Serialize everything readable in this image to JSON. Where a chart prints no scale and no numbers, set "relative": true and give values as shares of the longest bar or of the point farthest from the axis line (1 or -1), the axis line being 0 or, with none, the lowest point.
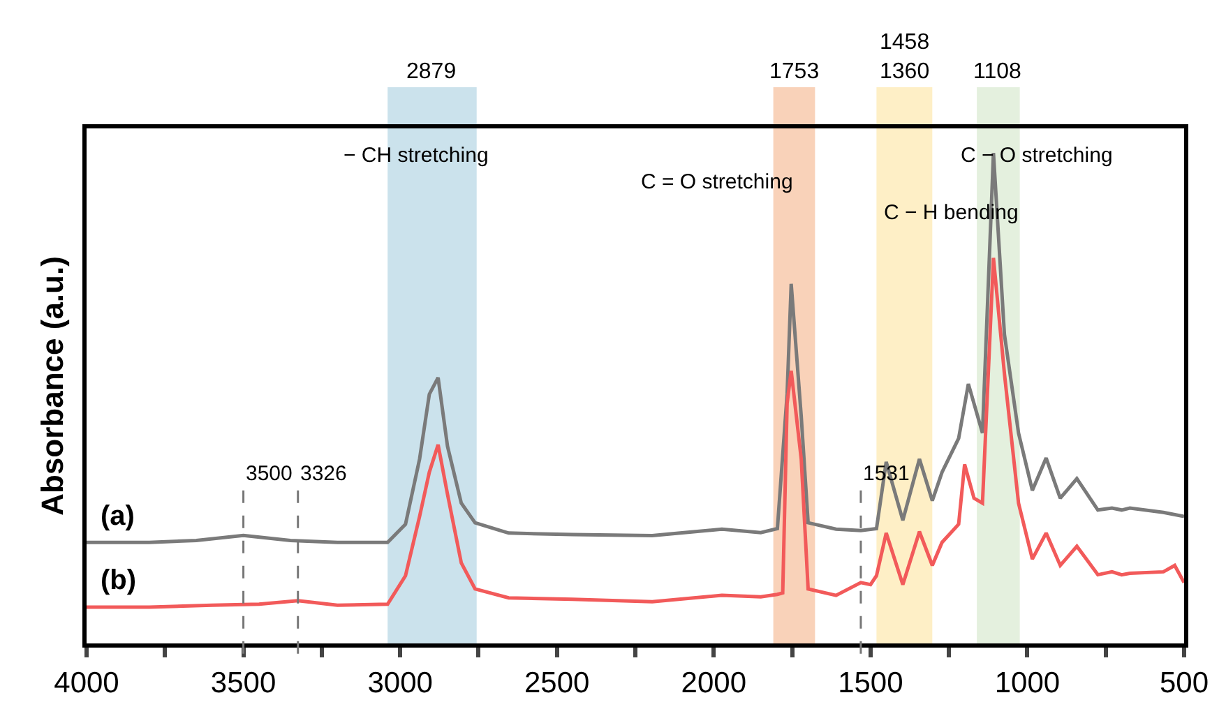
{
  "chart_data": {
    "type": "line",
    "ylabel": "Absorbance (a.u.)",
    "relative": true,
    "xlim": [
      4000,
      500
    ],
    "xticks": [
      4000,
      {
        "value": 3750,
        "label": null
      },
      3500,
      {
        "value": 3250,
        "label": null
      },
      3000,
      {
        "value": 2750,
        "label": null
      },
      2500,
      {
        "value": 2250,
        "label": null
      },
      2000,
      {
        "value": 1750,
        "label": null
      },
      1500,
      {
        "value": 1250,
        "label": null
      },
      1000,
      {
        "value": 750,
        "label": null
      },
      500
    ],
    "tick_labels": "x",
    "grid": false,
    "legend": false,
    "line_style": "solid",
    "marker": "none",
    "series": [
      {
        "name": "(a)",
        "color": "#7a7a7a",
        "x": [
          4000,
          3800,
          3650,
          3500,
          3350,
          3200,
          3040,
          2983,
          2938,
          2907,
          2879,
          2849,
          2805,
          2761,
          2654,
          2450,
          2196,
          1974,
          1850,
          1797,
          1766,
          1753,
          1721,
          1699,
          1610,
          1531,
          1481,
          1450,
          1397,
          1344,
          1303,
          1272,
          1219,
          1188,
          1143,
          1108,
          1073,
          1028,
          984,
          940,
          895,
          842,
          775,
          730,
          699,
          673,
          566,
          500
        ],
        "values": [
          0.206,
          0.206,
          0.21,
          0.22,
          0.21,
          0.206,
          0.206,
          0.243,
          0.376,
          0.508,
          0.542,
          0.402,
          0.286,
          0.246,
          0.225,
          0.222,
          0.22,
          0.233,
          0.226,
          0.234,
          0.508,
          0.733,
          0.463,
          0.246,
          0.233,
          0.23,
          0.234,
          0.37,
          0.251,
          0.376,
          0.291,
          0.349,
          0.418,
          0.529,
          0.429,
          1.0,
          0.63,
          0.429,
          0.312,
          0.378,
          0.296,
          0.336,
          0.272,
          0.276,
          0.272,
          0.276,
          0.267,
          0.259
        ]
      },
      {
        "name": "(b)",
        "color": "#f25a5a",
        "x": [
          4000,
          3800,
          3600,
          3450,
          3326,
          3200,
          3040,
          2983,
          2938,
          2907,
          2879,
          2849,
          2805,
          2761,
          2654,
          2450,
          2196,
          1974,
          1850,
          1797,
          1780,
          1766,
          1753,
          1721,
          1699,
          1610,
          1531,
          1500,
          1481,
          1450,
          1397,
          1344,
          1303,
          1272,
          1219,
          1200,
          1170,
          1143,
          1108,
          1073,
          1028,
          984,
          940,
          895,
          842,
          775,
          730,
          699,
          673,
          566,
          530,
          500
        ],
        "values": [
          0.074,
          0.074,
          0.078,
          0.08,
          0.087,
          0.078,
          0.08,
          0.138,
          0.259,
          0.349,
          0.405,
          0.304,
          0.164,
          0.111,
          0.093,
          0.09,
          0.085,
          0.098,
          0.095,
          0.1,
          0.103,
          0.489,
          0.556,
          0.376,
          0.111,
          0.098,
          0.124,
          0.12,
          0.138,
          0.225,
          0.12,
          0.228,
          0.159,
          0.206,
          0.243,
          0.365,
          0.296,
          0.286,
          0.786,
          0.55,
          0.286,
          0.172,
          0.225,
          0.159,
          0.198,
          0.14,
          0.146,
          0.14,
          0.143,
          0.146,
          0.159,
          0.124
        ]
      }
    ],
    "bands": [
      {
        "axis": "x",
        "from": 3040,
        "to": 2756,
        "label": "2879",
        "color": "#a9cfe0"
      },
      {
        "axis": "x",
        "from": 1810,
        "to": 1677,
        "label": "1753",
        "color": "#f5b48a"
      },
      {
        "axis": "x",
        "from": 1481,
        "to": 1303,
        "label": "1458\n1360",
        "color": "#fde5a0"
      },
      {
        "axis": "x",
        "from": 1161,
        "to": 1024,
        "label": "1108",
        "color": "#d2e6c8"
      }
    ],
    "ref_lines": [
      {
        "axis": "x",
        "value": 3500,
        "label": "3500",
        "color": "#777777",
        "line_style": "dashed"
      },
      {
        "axis": "x",
        "value": 3326,
        "label": "3326",
        "color": "#777777",
        "line_style": "dashed"
      },
      {
        "axis": "x",
        "value": 1531,
        "label": "1531",
        "color": "#777777",
        "line_style": "dashed"
      }
    ],
    "annotations": [
      "− CH stretching",
      "C = O stretching",
      "C − H bending",
      "C − O stretching"
    ]
  }
}
